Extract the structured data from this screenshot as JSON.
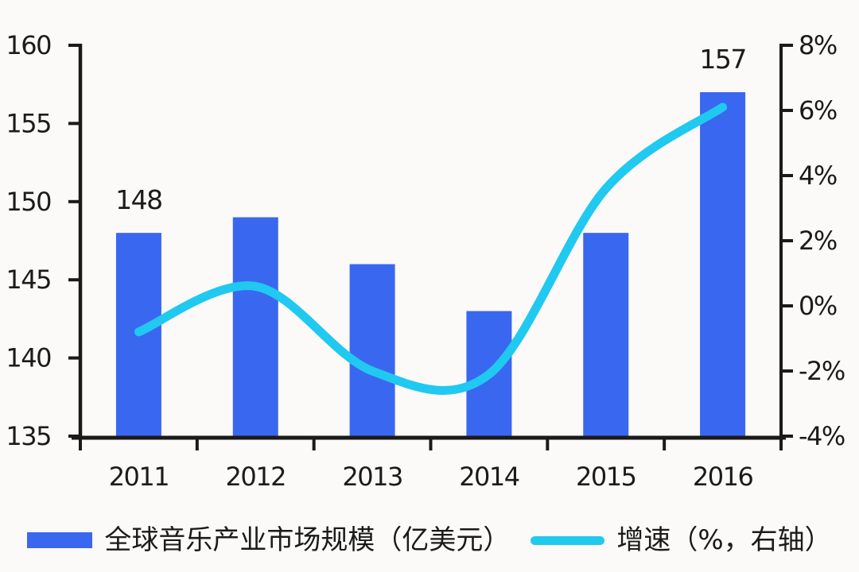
{
  "chart_data": {
    "type": "bar",
    "subtype": "combo-bar-line",
    "categories": [
      "2011",
      "2012",
      "2013",
      "2014",
      "2015",
      "2016"
    ],
    "series": [
      {
        "name": "全球音乐产业市场规模（亿美元）",
        "type": "bar",
        "axis": "left",
        "color": "#3a67f0",
        "values": [
          148,
          149,
          146,
          143,
          148,
          157
        ],
        "data_labels": [
          "148",
          "",
          "",
          "",
          "",
          "157"
        ]
      },
      {
        "name": "增速（%，右轴）",
        "type": "line",
        "axis": "right",
        "color": "#20c9f0",
        "smooth": true,
        "values": [
          -0.8,
          0.6,
          -2.0,
          -2.1,
          3.6,
          6.1
        ]
      }
    ],
    "left_axis": {
      "min": 135,
      "max": 160,
      "step": 5,
      "tick_labels": [
        "135",
        "140",
        "145",
        "150",
        "155",
        "160"
      ]
    },
    "right_axis": {
      "min": -4,
      "max": 8,
      "step": 2,
      "tick_labels": [
        "-4%",
        "-2%",
        "0%",
        "2%",
        "4%",
        "6%",
        "8%"
      ]
    },
    "title": "",
    "xlabel": "",
    "ylabel": "",
    "grid": false,
    "legend_position": "bottom",
    "colors": {
      "background": "#fbfaf8",
      "axis": "#1a1a1a",
      "text": "#1b1b1b",
      "bar": "#3a67f0",
      "line": "#20c9f0"
    }
  }
}
